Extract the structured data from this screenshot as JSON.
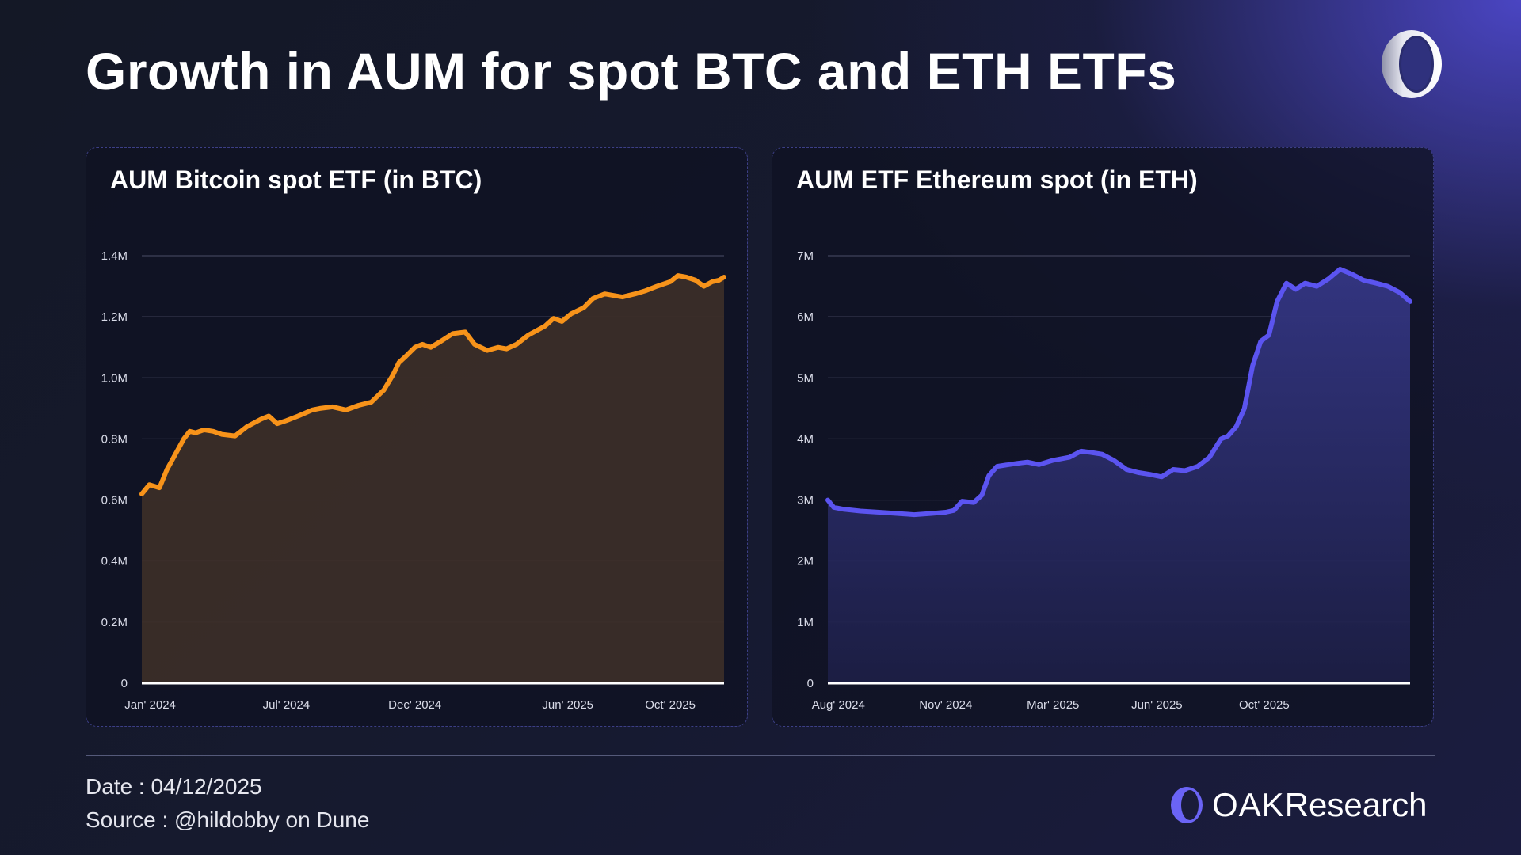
{
  "page": {
    "title": "Growth in AUM for spot BTC and ETH ETFs",
    "footer_date": "Date : 04/12/2025",
    "footer_source": "Source : @hildobby on Dune",
    "brand_oak": "OAK",
    "brand_research": "Research",
    "logo_icon": "oak-ring-icon"
  },
  "colors": {
    "btc_line": "#f7931a",
    "btc_fill": "#3b2d28",
    "eth_line": "#5b54f0",
    "eth_fill_top": "#343684",
    "eth_fill_bottom": "#1c1e44",
    "grid": "#4a4d66",
    "baseline": "#ffffff"
  },
  "chart_data": [
    {
      "type": "area",
      "title": "AUM Bitcoin spot ETF (in BTC)",
      "xlabel": "",
      "ylabel": "",
      "ylim": [
        0,
        1400000
      ],
      "xlim": [
        "2024-01-11",
        "2025-12-04"
      ],
      "yticks": [
        0,
        200000,
        400000,
        600000,
        800000,
        1000000,
        1200000,
        1400000
      ],
      "ytick_labels": [
        "0",
        "0.2M",
        "0.4M",
        "0.6M",
        "0.8M",
        "1.0M",
        "1.2M",
        "1.4M"
      ],
      "xticks": [
        "2024-01-21",
        "2024-07-01",
        "2024-12-01",
        "2025-06-01",
        "2025-10-01"
      ],
      "xtick_labels": [
        "Jan' 2024",
        "Jul' 2024",
        "Dec' 2024",
        "Jun' 2025",
        "Oct' 2025"
      ],
      "grid": true,
      "legend": "none",
      "x": [
        "2024-01-11",
        "2024-01-20",
        "2024-02-01",
        "2024-02-10",
        "2024-02-20",
        "2024-03-01",
        "2024-03-08",
        "2024-03-15",
        "2024-03-25",
        "2024-04-05",
        "2024-04-15",
        "2024-05-01",
        "2024-05-15",
        "2024-06-01",
        "2024-06-10",
        "2024-06-20",
        "2024-07-01",
        "2024-07-15",
        "2024-08-01",
        "2024-08-10",
        "2024-08-25",
        "2024-09-10",
        "2024-09-25",
        "2024-10-10",
        "2024-10-25",
        "2024-11-05",
        "2024-11-12",
        "2024-11-20",
        "2024-12-01",
        "2024-12-10",
        "2024-12-20",
        "2025-01-01",
        "2025-01-15",
        "2025-01-30",
        "2025-02-10",
        "2025-02-25",
        "2025-03-10",
        "2025-03-20",
        "2025-04-01",
        "2025-04-15",
        "2025-04-25",
        "2025-05-05",
        "2025-05-15",
        "2025-05-25",
        "2025-06-05",
        "2025-06-20",
        "2025-07-01",
        "2025-07-15",
        "2025-07-25",
        "2025-08-05",
        "2025-08-20",
        "2025-09-01",
        "2025-09-15",
        "2025-10-01",
        "2025-10-10",
        "2025-10-20",
        "2025-10-31",
        "2025-11-10",
        "2025-11-20",
        "2025-11-28",
        "2025-12-04"
      ],
      "values": [
        620000,
        650000,
        640000,
        700000,
        750000,
        800000,
        825000,
        820000,
        830000,
        825000,
        815000,
        810000,
        840000,
        865000,
        875000,
        850000,
        860000,
        875000,
        895000,
        900000,
        905000,
        895000,
        910000,
        920000,
        960000,
        1010000,
        1050000,
        1070000,
        1100000,
        1110000,
        1100000,
        1120000,
        1145000,
        1150000,
        1110000,
        1090000,
        1100000,
        1095000,
        1110000,
        1140000,
        1155000,
        1170000,
        1195000,
        1185000,
        1210000,
        1230000,
        1260000,
        1275000,
        1270000,
        1265000,
        1275000,
        1285000,
        1300000,
        1315000,
        1335000,
        1330000,
        1320000,
        1300000,
        1315000,
        1320000,
        1330000
      ]
    },
    {
      "type": "area",
      "title": "AUM ETF Ethereum spot (in ETH)",
      "xlabel": "",
      "ylabel": "",
      "ylim": [
        0,
        7000000
      ],
      "xlim": [
        "2024-07-23",
        "2025-12-04"
      ],
      "yticks": [
        0,
        1000000,
        2000000,
        3000000,
        4000000,
        5000000,
        6000000,
        7000000
      ],
      "ytick_labels": [
        "0",
        "1M",
        "2M",
        "3M",
        "4M",
        "5M",
        "6M",
        "7M"
      ],
      "xticks": [
        "2024-08-01",
        "2024-11-01",
        "2025-02-01",
        "2025-05-01",
        "2025-08-01"
      ],
      "xtick_labels": [
        "Aug' 2024",
        "Nov' 2024",
        "Mar' 2025",
        "Jun' 2025",
        "Oct' 2025"
      ],
      "grid": true,
      "legend": "none",
      "x": [
        "2024-07-23",
        "2024-07-28",
        "2024-08-05",
        "2024-08-20",
        "2024-09-05",
        "2024-09-20",
        "2024-10-05",
        "2024-10-20",
        "2024-11-01",
        "2024-11-08",
        "2024-11-15",
        "2024-11-25",
        "2024-12-02",
        "2024-12-08",
        "2024-12-15",
        "2025-01-01",
        "2025-01-10",
        "2025-01-20",
        "2025-02-01",
        "2025-02-15",
        "2025-02-25",
        "2025-03-05",
        "2025-03-15",
        "2025-03-25",
        "2025-04-05",
        "2025-04-15",
        "2025-04-25",
        "2025-05-05",
        "2025-05-15",
        "2025-05-25",
        "2025-06-05",
        "2025-06-15",
        "2025-06-25",
        "2025-07-01",
        "2025-07-08",
        "2025-07-15",
        "2025-07-22",
        "2025-07-29",
        "2025-08-05",
        "2025-08-12",
        "2025-08-20",
        "2025-08-28",
        "2025-09-05",
        "2025-09-15",
        "2025-09-25",
        "2025-10-05",
        "2025-10-15",
        "2025-10-25",
        "2025-11-05",
        "2025-11-15",
        "2025-11-25",
        "2025-12-04"
      ],
      "values": [
        3000000,
        2880000,
        2850000,
        2820000,
        2800000,
        2780000,
        2760000,
        2780000,
        2800000,
        2830000,
        2980000,
        2960000,
        3080000,
        3400000,
        3550000,
        3600000,
        3620000,
        3580000,
        3650000,
        3700000,
        3800000,
        3780000,
        3750000,
        3650000,
        3500000,
        3450000,
        3420000,
        3380000,
        3500000,
        3480000,
        3550000,
        3700000,
        4000000,
        4050000,
        4200000,
        4500000,
        5200000,
        5600000,
        5700000,
        6250000,
        6550000,
        6450000,
        6550000,
        6500000,
        6620000,
        6780000,
        6700000,
        6600000,
        6550000,
        6500000,
        6400000,
        6250000
      ]
    }
  ]
}
